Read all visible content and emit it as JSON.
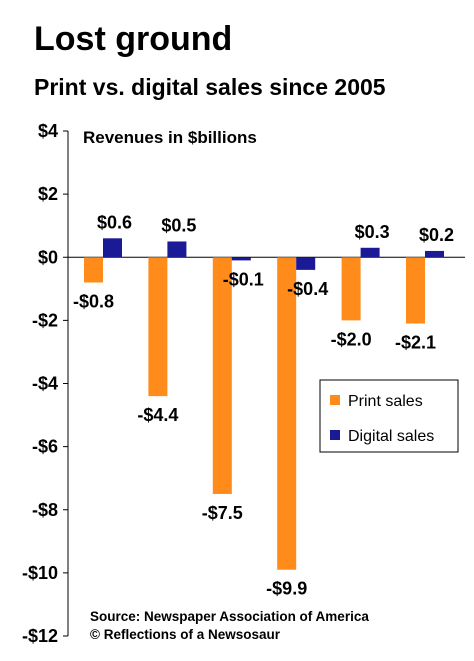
{
  "colors": {
    "print": "#FF8C1A",
    "digital": "#1A1A96"
  },
  "chart_data": {
    "type": "bar",
    "title": "Lost ground",
    "subtitle": "Print vs. digital sales since 2005",
    "ylabel": "Revenues in $billions",
    "ylim": [
      -12,
      4
    ],
    "yticks": [
      4,
      2,
      0,
      -2,
      -4,
      -6,
      -8,
      -10,
      -12
    ],
    "ytick_labels": [
      "$4",
      "$2",
      "$0",
      "-$2",
      "-$4",
      "-$6",
      "-$8",
      "-$10",
      "-$12"
    ],
    "categories": [
      "",
      "",
      "",
      "",
      "",
      ""
    ],
    "series": [
      {
        "name": "Print sales",
        "values": [
          -0.8,
          -4.4,
          -7.5,
          -9.9,
          -2.0,
          -2.1
        ],
        "labels": [
          "-$0.8",
          "-$4.4",
          "-$7.5",
          "-$9.9",
          "-$2.0",
          "-$2.1"
        ]
      },
      {
        "name": "Digital sales",
        "values": [
          0.6,
          0.5,
          -0.1,
          -0.4,
          0.3,
          0.2
        ],
        "labels": [
          "$0.6",
          "$0.5",
          "-$0.1",
          "-$0.4",
          "$0.3",
          "$0.2"
        ]
      }
    ],
    "grid": false,
    "legend": "lower-right"
  },
  "footer": {
    "source": "Source: Newspaper Association of America",
    "credit": "© Reflections of a Newsosaur"
  }
}
